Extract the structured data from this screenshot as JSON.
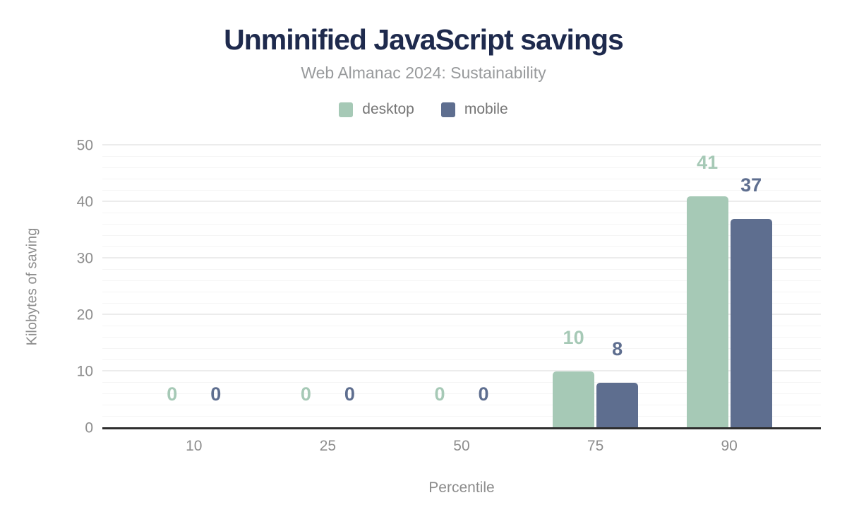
{
  "chart_data": {
    "type": "bar",
    "title": "Unminified JavaScript savings",
    "subtitle": "Web Almanac 2024: Sustainability",
    "categories": [
      "10",
      "25",
      "50",
      "75",
      "90"
    ],
    "series": [
      {
        "name": "desktop",
        "color": "#a6c9b6",
        "values": [
          0,
          0,
          0,
          10,
          41
        ]
      },
      {
        "name": "mobile",
        "color": "#5e6e8f",
        "values": [
          0,
          0,
          0,
          8,
          37
        ]
      }
    ],
    "xlabel": "Percentile",
    "ylabel": "Kilobytes of saving",
    "ylim": [
      0,
      50
    ],
    "yticks": [
      0,
      10,
      20,
      30,
      40,
      50
    ],
    "minor_grid_step": 2,
    "grid": "horizontal",
    "legend_position": "top",
    "bar_value_labels": true
  },
  "style_colors": {
    "title_text": "#1e2a4d",
    "subtitle_text": "#989a9c",
    "legend_text": "#757575",
    "axis_text": "#8d8d8d",
    "axis_line": "#2e2e2e",
    "grid_major": "#ececec",
    "grid_minor": "#f5f5f5",
    "background": "#ffffff"
  }
}
